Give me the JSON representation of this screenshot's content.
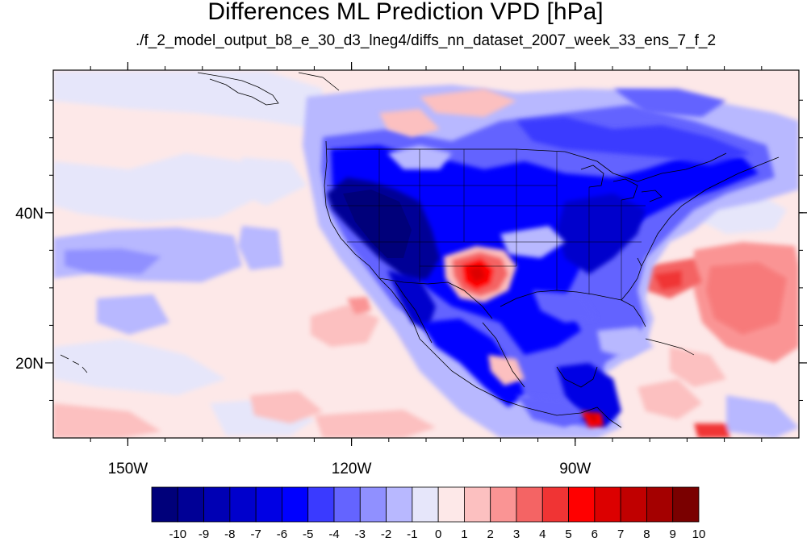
{
  "title": "Differences ML Prediction VPD [hPa]",
  "subtitle": "./f_2_model_output_b8_e_30_d3_lneg4/diffs_nn_dataset_2007_week_33_ens_7_f_2",
  "map": {
    "lon_range": [
      -160,
      -60
    ],
    "lat_range": [
      10,
      59
    ],
    "x_ticks": [
      {
        "value": -150,
        "label": "150W"
      },
      {
        "value": -120,
        "label": "120W"
      },
      {
        "value": -90,
        "label": "90W"
      }
    ],
    "y_ticks": [
      {
        "value": 40,
        "label": "40N"
      },
      {
        "value": 20,
        "label": "20N"
      }
    ],
    "ocean_color": "#fde8e8",
    "land_color": "#e6e6fa"
  },
  "colorbar": {
    "labels": [
      "-10",
      "-9",
      "-8",
      "-7",
      "-6",
      "-5",
      "-4",
      "-3",
      "-2",
      "-1",
      "0",
      "1",
      "2",
      "3",
      "4",
      "5",
      "6",
      "7",
      "8",
      "9",
      "10"
    ],
    "colors": [
      "#00007a",
      "#000096",
      "#0000b4",
      "#0000cc",
      "#0000e4",
      "#0000ff",
      "#3a3aff",
      "#6464ff",
      "#9090ff",
      "#b8b8ff",
      "#e6e6fa",
      "#fde8e8",
      "#fcc0c0",
      "#fa9494",
      "#f46464",
      "#f03434",
      "#ff0000",
      "#dc0000",
      "#c00000",
      "#a40000",
      "#7a0000"
    ]
  }
}
